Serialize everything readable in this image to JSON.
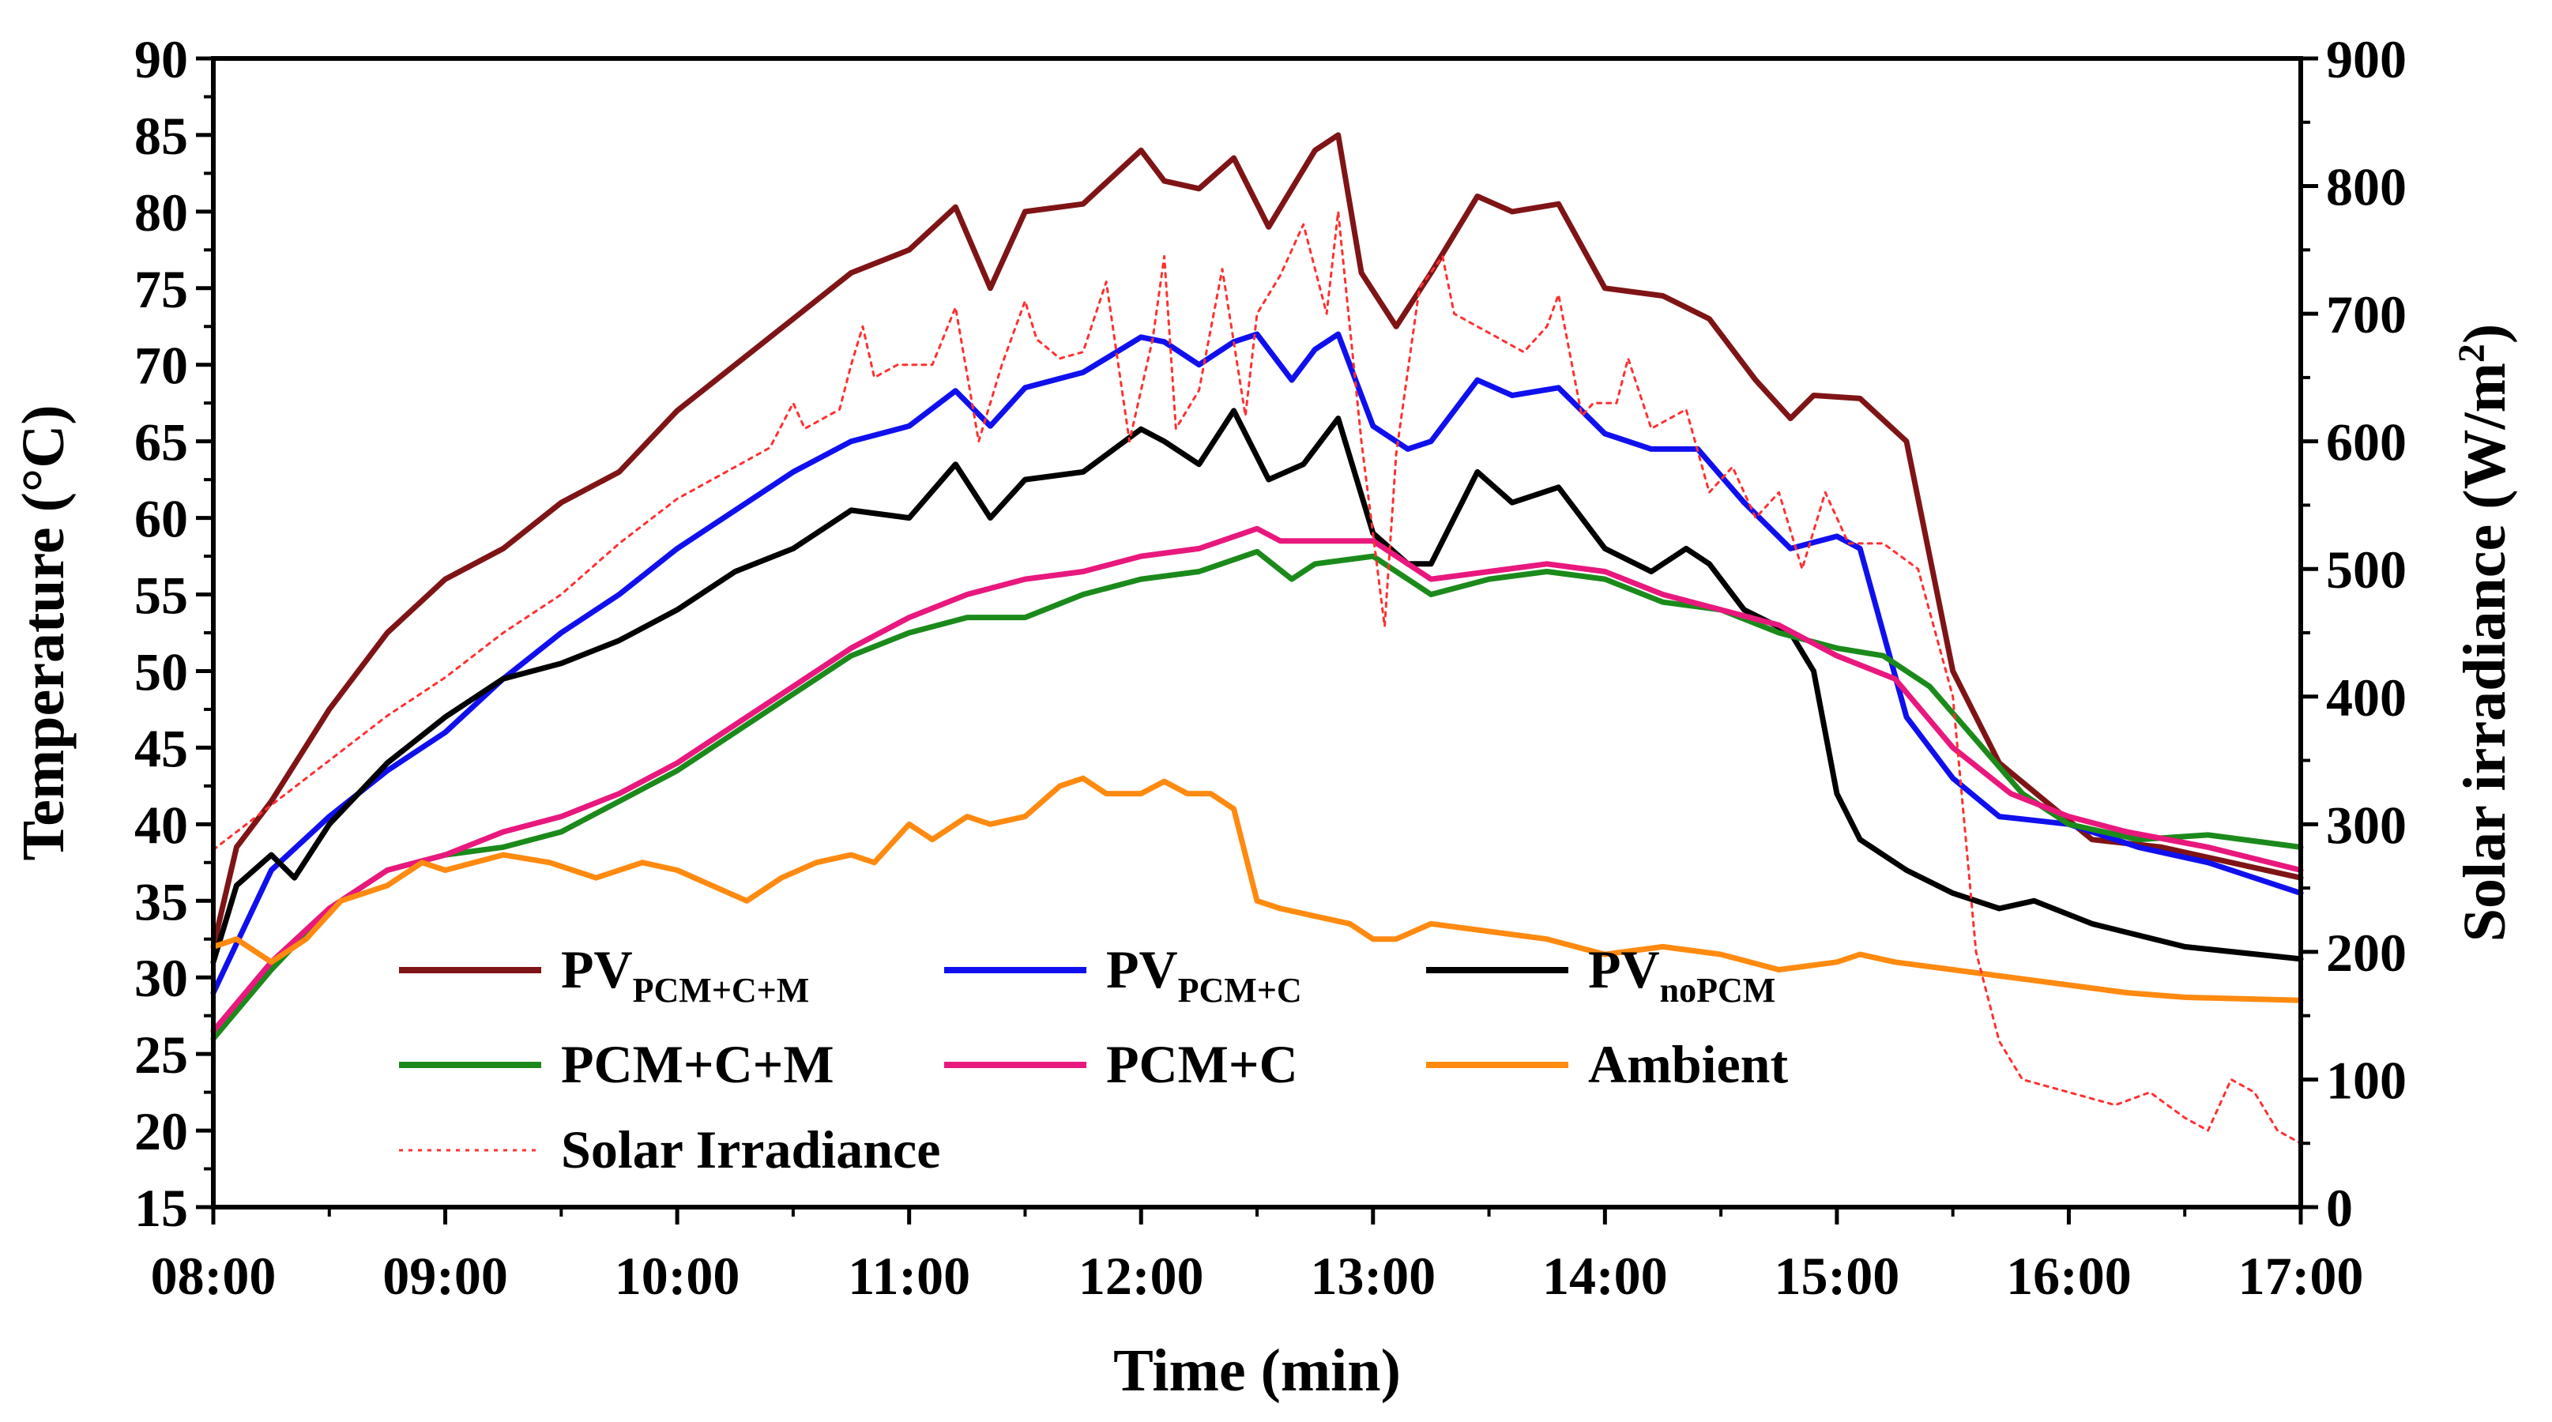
{
  "chart_data": {
    "type": "line",
    "xlabel": "Time (min)",
    "ylabel_left": "Temperature (°C)",
    "ylabel_right_prefix": "Solar irradiance (W/m",
    "ylabel_right_sup": "2",
    "ylabel_right_suffix": ")",
    "xlim": [
      8,
      17
    ],
    "ylim_left": [
      15,
      90
    ],
    "ylim_right": [
      0,
      900
    ],
    "x_ticks": [
      8,
      9,
      10,
      11,
      12,
      13,
      14,
      15,
      16,
      17
    ],
    "x_tick_labels": [
      "08:00",
      "09:00",
      "10:00",
      "11:00",
      "12:00",
      "13:00",
      "14:00",
      "15:00",
      "16:00",
      "17:00"
    ],
    "y_left_ticks": [
      15,
      20,
      25,
      30,
      35,
      40,
      45,
      50,
      55,
      60,
      65,
      70,
      75,
      80,
      85,
      90
    ],
    "y_left_tick_labels": [
      "15",
      "20",
      "25",
      "30",
      "35",
      "40",
      "45",
      "50",
      "55",
      "60",
      "65",
      "70",
      "75",
      "80",
      "85",
      "90"
    ],
    "y_right_ticks": [
      0,
      100,
      200,
      300,
      400,
      500,
      600,
      700,
      800,
      900
    ],
    "y_right_tick_labels": [
      "0",
      "100",
      "200",
      "300",
      "400",
      "500",
      "600",
      "700",
      "800",
      "900"
    ],
    "series": [
      {
        "name": "PV_PCM+C+M",
        "label_main": "PV",
        "label_sub": "PCM+C+M",
        "color": "#7f1416",
        "axis": "left",
        "dash": "",
        "x": [
          8.0,
          8.1,
          8.25,
          8.5,
          8.75,
          9.0,
          9.25,
          9.5,
          9.75,
          10.0,
          10.25,
          10.5,
          10.75,
          11.0,
          11.2,
          11.35,
          11.5,
          11.75,
          12.0,
          12.1,
          12.25,
          12.4,
          12.55,
          12.75,
          12.85,
          12.95,
          13.1,
          13.25,
          13.45,
          13.6,
          13.8,
          14.0,
          14.25,
          14.45,
          14.65,
          14.8,
          14.9,
          15.1,
          15.3,
          15.5,
          15.7,
          15.9,
          16.1,
          16.4,
          16.7,
          17.0
        ],
        "y": [
          32.0,
          38.5,
          41.5,
          47.5,
          52.5,
          56.0,
          58.0,
          61.0,
          63.0,
          67.0,
          70.0,
          73.0,
          76.0,
          77.5,
          80.3,
          75.0,
          80.0,
          80.5,
          84.0,
          82.0,
          81.5,
          83.5,
          79.0,
          84.0,
          85.0,
          76.0,
          72.5,
          76.0,
          81.0,
          80.0,
          80.5,
          75.0,
          74.5,
          73.0,
          69.0,
          66.5,
          68.0,
          67.8,
          65.0,
          50.0,
          44.0,
          41.5,
          39.0,
          38.5,
          37.5,
          36.5
        ]
      },
      {
        "name": "PV_PCM+C",
        "label_main": "PV",
        "label_sub": "PCM+C",
        "color": "#1010ee",
        "axis": "left",
        "dash": "",
        "x": [
          8.0,
          8.25,
          8.5,
          8.75,
          9.0,
          9.25,
          9.5,
          9.75,
          10.0,
          10.25,
          10.5,
          10.75,
          11.0,
          11.2,
          11.35,
          11.5,
          11.75,
          12.0,
          12.1,
          12.25,
          12.4,
          12.5,
          12.65,
          12.75,
          12.85,
          13.0,
          13.15,
          13.25,
          13.45,
          13.6,
          13.8,
          14.0,
          14.2,
          14.4,
          14.6,
          14.8,
          15.0,
          15.1,
          15.3,
          15.5,
          15.7,
          16.0,
          16.3,
          16.6,
          17.0
        ],
        "y": [
          29.0,
          37.0,
          40.5,
          43.5,
          46.0,
          49.5,
          52.5,
          55.0,
          58.0,
          60.5,
          63.0,
          65.0,
          66.0,
          68.3,
          66.0,
          68.5,
          69.5,
          71.8,
          71.5,
          70.0,
          71.5,
          72.0,
          69.0,
          71.0,
          72.0,
          66.0,
          64.5,
          65.0,
          69.0,
          68.0,
          68.5,
          65.5,
          64.5,
          64.5,
          61.0,
          58.0,
          58.8,
          58.0,
          47.0,
          43.0,
          40.5,
          40.0,
          38.5,
          37.5,
          35.5
        ]
      },
      {
        "name": "PV_noPCM",
        "label_main": "PV",
        "label_sub": "noPCM",
        "color": "#000000",
        "axis": "left",
        "dash": "",
        "x": [
          8.0,
          8.1,
          8.25,
          8.35,
          8.5,
          8.75,
          9.0,
          9.25,
          9.5,
          9.75,
          10.0,
          10.25,
          10.5,
          10.75,
          11.0,
          11.2,
          11.35,
          11.5,
          11.75,
          12.0,
          12.1,
          12.25,
          12.4,
          12.55,
          12.7,
          12.85,
          13.0,
          13.15,
          13.25,
          13.45,
          13.6,
          13.8,
          14.0,
          14.2,
          14.35,
          14.45,
          14.6,
          14.8,
          14.9,
          15.0,
          15.1,
          15.3,
          15.5,
          15.7,
          15.85,
          16.1,
          16.5,
          17.0
        ],
        "y": [
          31.0,
          36.0,
          38.0,
          36.5,
          40.0,
          44.0,
          47.0,
          49.5,
          50.5,
          52.0,
          54.0,
          56.5,
          58.0,
          60.5,
          60.0,
          63.5,
          60.0,
          62.5,
          63.0,
          65.8,
          65.0,
          63.5,
          67.0,
          62.5,
          63.5,
          66.5,
          59.0,
          57.0,
          57.0,
          63.0,
          61.0,
          62.0,
          58.0,
          56.5,
          58.0,
          57.0,
          54.0,
          52.5,
          50.0,
          42.0,
          39.0,
          37.0,
          35.5,
          34.5,
          35.0,
          33.5,
          32.0,
          31.2
        ]
      },
      {
        "name": "PCM+C+M",
        "label_main": "PCM+C+M",
        "label_sub": "",
        "color": "#1b8a1b",
        "axis": "left",
        "dash": "",
        "x": [
          8.0,
          8.25,
          8.5,
          8.75,
          9.0,
          9.25,
          9.5,
          9.75,
          10.0,
          10.25,
          10.5,
          10.75,
          11.0,
          11.25,
          11.5,
          11.75,
          12.0,
          12.25,
          12.5,
          12.65,
          12.75,
          13.0,
          13.25,
          13.5,
          13.75,
          14.0,
          14.25,
          14.5,
          14.75,
          15.0,
          15.2,
          15.4,
          15.6,
          15.8,
          16.0,
          16.3,
          16.6,
          17.0
        ],
        "y": [
          26.0,
          30.5,
          34.5,
          37.0,
          38.0,
          38.5,
          39.5,
          41.5,
          43.5,
          46.0,
          48.5,
          51.0,
          52.5,
          53.5,
          53.5,
          55.0,
          56.0,
          56.5,
          57.8,
          56.0,
          57.0,
          57.5,
          55.0,
          56.0,
          56.5,
          56.0,
          54.5,
          54.0,
          52.5,
          51.5,
          51.0,
          49.0,
          45.5,
          42.0,
          40.0,
          39.0,
          39.3,
          38.5
        ]
      },
      {
        "name": "PCM+C",
        "label_main": "PCM+C",
        "label_sub": "",
        "color": "#e8187e",
        "axis": "left",
        "dash": "",
        "x": [
          8.0,
          8.25,
          8.5,
          8.75,
          9.0,
          9.25,
          9.5,
          9.75,
          10.0,
          10.25,
          10.5,
          10.75,
          11.0,
          11.25,
          11.5,
          11.75,
          12.0,
          12.25,
          12.5,
          12.6,
          12.75,
          13.0,
          13.25,
          13.5,
          13.75,
          14.0,
          14.25,
          14.5,
          14.75,
          15.0,
          15.25,
          15.5,
          15.75,
          16.0,
          16.25,
          16.6,
          17.0
        ],
        "y": [
          26.5,
          31.0,
          34.5,
          37.0,
          38.0,
          39.5,
          40.5,
          42.0,
          44.0,
          46.5,
          49.0,
          51.5,
          53.5,
          55.0,
          56.0,
          56.5,
          57.5,
          58.0,
          59.3,
          58.5,
          58.5,
          58.5,
          56.0,
          56.5,
          57.0,
          56.5,
          55.0,
          54.0,
          53.0,
          51.0,
          49.5,
          45.0,
          42.0,
          40.5,
          39.5,
          38.5,
          37.0
        ]
      },
      {
        "name": "Ambient",
        "label_main": "Ambient",
        "label_sub": "",
        "color": "#ff8a10",
        "axis": "left",
        "dash": "",
        "x": [
          8.0,
          8.1,
          8.25,
          8.4,
          8.55,
          8.75,
          8.9,
          9.0,
          9.25,
          9.45,
          9.65,
          9.85,
          10.0,
          10.15,
          10.3,
          10.45,
          10.6,
          10.75,
          10.85,
          11.0,
          11.1,
          11.25,
          11.35,
          11.5,
          11.65,
          11.75,
          11.85,
          12.0,
          12.1,
          12.2,
          12.3,
          12.4,
          12.5,
          12.6,
          12.75,
          12.9,
          13.0,
          13.1,
          13.25,
          13.5,
          13.75,
          14.0,
          14.25,
          14.5,
          14.75,
          14.9,
          15.0,
          15.1,
          15.25,
          15.5,
          15.75,
          16.0,
          16.25,
          16.5,
          17.0
        ],
        "y": [
          32.0,
          32.5,
          31.0,
          32.5,
          35.0,
          36.0,
          37.5,
          37.0,
          38.0,
          37.5,
          36.5,
          37.5,
          37.0,
          36.0,
          35.0,
          36.5,
          37.5,
          38.0,
          37.5,
          40.0,
          39.0,
          40.5,
          40.0,
          40.5,
          42.5,
          43.0,
          42.0,
          42.0,
          42.8,
          42.0,
          42.0,
          41.0,
          35.0,
          34.5,
          34.0,
          33.5,
          32.5,
          32.5,
          33.5,
          33.0,
          32.5,
          31.5,
          32.0,
          31.5,
          30.5,
          30.8,
          31.0,
          31.5,
          31.0,
          30.5,
          30.0,
          29.5,
          29.0,
          28.7,
          28.5
        ]
      },
      {
        "name": "Solar Irradiance",
        "label_main": "Solar Irradiance",
        "label_sub": "",
        "color": "#ff3030",
        "axis": "right",
        "dash": "5,7",
        "x": [
          8.0,
          8.25,
          8.5,
          8.75,
          9.0,
          9.25,
          9.5,
          9.75,
          10.0,
          10.25,
          10.4,
          10.5,
          10.55,
          10.7,
          10.75,
          10.8,
          10.85,
          10.95,
          11.1,
          11.2,
          11.3,
          11.4,
          11.5,
          11.55,
          11.65,
          11.75,
          11.85,
          11.95,
          12.05,
          12.1,
          12.15,
          12.25,
          12.35,
          12.45,
          12.5,
          12.6,
          12.7,
          12.8,
          12.85,
          12.9,
          12.95,
          13.05,
          13.1,
          13.2,
          13.3,
          13.35,
          13.45,
          13.55,
          13.65,
          13.75,
          13.8,
          13.9,
          13.95,
          14.05,
          14.1,
          14.2,
          14.35,
          14.45,
          14.55,
          14.65,
          14.75,
          14.85,
          14.95,
          15.05,
          15.2,
          15.35,
          15.5,
          15.6,
          15.7,
          15.8,
          16.0,
          16.2,
          16.35,
          16.5,
          16.6,
          16.7,
          16.8,
          16.9,
          17.0
        ],
        "y": [
          280,
          315,
          350,
          385,
          415,
          450,
          480,
          520,
          555,
          580,
          595,
          630,
          610,
          625,
          660,
          690,
          650,
          660,
          660,
          705,
          600,
          660,
          710,
          680,
          665,
          670,
          725,
          600,
          680,
          745,
          610,
          640,
          735,
          620,
          700,
          730,
          770,
          700,
          780,
          690,
          600,
          455,
          590,
          720,
          745,
          700,
          690,
          680,
          670,
          690,
          715,
          620,
          630,
          630,
          665,
          610,
          625,
          560,
          580,
          540,
          560,
          500,
          560,
          520,
          520,
          500,
          400,
          200,
          130,
          100,
          90,
          80,
          90,
          70,
          60,
          100,
          90,
          60,
          50
        ]
      }
    ]
  }
}
